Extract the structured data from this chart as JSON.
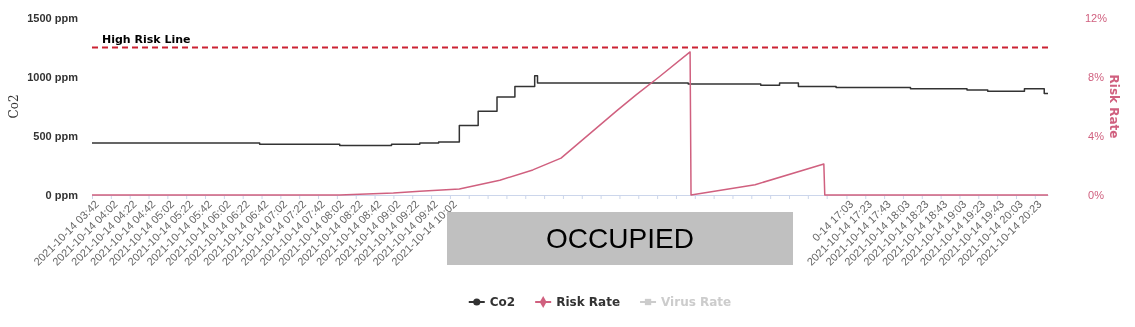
{
  "chart_data": {
    "type": "line",
    "ylabel": "Co2",
    "y2label": "Risk Rate",
    "xlim": [
      "2021-10-14T03:42",
      "2021-10-14T20:37"
    ],
    "xticks": [
      {
        "value": "2021-10-14T03:42",
        "label": "2021-10-14 03:42"
      },
      {
        "value": "2021-10-14T04:02",
        "label": "2021-10-14 04:02"
      },
      {
        "value": "2021-10-14T04:22",
        "label": "2021-10-14 04:22"
      },
      {
        "value": "2021-10-14T04:42",
        "label": "2021-10-14 04:42"
      },
      {
        "value": "2021-10-14T05:02",
        "label": "2021-10-14 05:02"
      },
      {
        "value": "2021-10-14T05:22",
        "label": "2021-10-14 05:22"
      },
      {
        "value": "2021-10-14T05:42",
        "label": "2021-10-14 05:42"
      },
      {
        "value": "2021-10-14T06:02",
        "label": "2021-10-14 06:02"
      },
      {
        "value": "2021-10-14T06:22",
        "label": "2021-10-14 06:22"
      },
      {
        "value": "2021-10-14T06:42",
        "label": "2021-10-14 06:42"
      },
      {
        "value": "2021-10-14T07:02",
        "label": "2021-10-14 07:02"
      },
      {
        "value": "2021-10-14T07:22",
        "label": "2021-10-14 07:22"
      },
      {
        "value": "2021-10-14T07:42",
        "label": "2021-10-14 07:42"
      },
      {
        "value": "2021-10-14T08:02",
        "label": "2021-10-14 08:02"
      },
      {
        "value": "2021-10-14T08:22",
        "label": "2021-10-14 08:22"
      },
      {
        "value": "2021-10-14T08:42",
        "label": "2021-10-14 08:42"
      },
      {
        "value": "2021-10-14T09:02",
        "label": "2021-10-14 09:02"
      },
      {
        "value": "2021-10-14T09:22",
        "label": "2021-10-14 09:22"
      },
      {
        "value": "2021-10-14T09:42",
        "label": "2021-10-14 09:42"
      },
      {
        "value": "2021-10-14T10:02",
        "label": "2021-10-14 10:02"
      },
      {
        "value": "2021-10-14T10:22",
        "label": null
      },
      {
        "value": "2021-10-14T10:42",
        "label": null
      },
      {
        "value": "2021-10-14T11:02",
        "label": null
      },
      {
        "value": "2021-10-14T11:22",
        "label": null
      },
      {
        "value": "2021-10-14T11:42",
        "label": null
      },
      {
        "value": "2021-10-14T12:02",
        "label": null
      },
      {
        "value": "2021-10-14T12:22",
        "label": null
      },
      {
        "value": "2021-10-14T12:42",
        "label": null
      },
      {
        "value": "2021-10-14T13:02",
        "label": null
      },
      {
        "value": "2021-10-14T13:22",
        "label": null
      },
      {
        "value": "2021-10-14T13:42",
        "label": null
      },
      {
        "value": "2021-10-14T14:02",
        "label": null
      },
      {
        "value": "2021-10-14T14:22",
        "label": null
      },
      {
        "value": "2021-10-14T14:42",
        "label": null
      },
      {
        "value": "2021-10-14T15:02",
        "label": null
      },
      {
        "value": "2021-10-14T15:22",
        "label": null
      },
      {
        "value": "2021-10-14T15:42",
        "label": null
      },
      {
        "value": "2021-10-14T16:02",
        "label": null
      },
      {
        "value": "2021-10-14T16:22",
        "label": null
      },
      {
        "value": "2021-10-14T16:42",
        "label": null
      },
      {
        "value": "2021-10-14T17:03",
        "label": "0-14 17:03"
      },
      {
        "value": "2021-10-14T17:23",
        "label": "2021-10-14 17:23"
      },
      {
        "value": "2021-10-14T17:43",
        "label": "2021-10-14 17:43"
      },
      {
        "value": "2021-10-14T18:03",
        "label": "2021-10-14 18:03"
      },
      {
        "value": "2021-10-14T18:23",
        "label": "2021-10-14 18:23"
      },
      {
        "value": "2021-10-14T18:43",
        "label": "2021-10-14 18:43"
      },
      {
        "value": "2021-10-14T19:03",
        "label": "2021-10-14 19:03"
      },
      {
        "value": "2021-10-14T19:23",
        "label": "2021-10-14 19:23"
      },
      {
        "value": "2021-10-14T19:43",
        "label": "2021-10-14 19:43"
      },
      {
        "value": "2021-10-14T20:03",
        "label": "2021-10-14 20:03"
      },
      {
        "value": "2021-10-14T20:23",
        "label": "2021-10-14 20:23"
      }
    ],
    "ylim": [
      0,
      1500
    ],
    "yticks": [
      {
        "value": 0,
        "label": "0 ppm"
      },
      {
        "value": 500,
        "label": "500 ppm"
      },
      {
        "value": 1000,
        "label": "1000 ppm"
      },
      {
        "value": 1500,
        "label": "1500 ppm"
      }
    ],
    "y2lim": [
      0,
      12
    ],
    "y2ticks": [
      {
        "value": 0,
        "label": "0%"
      },
      {
        "value": 4,
        "label": "4%"
      },
      {
        "value": 8,
        "label": "8%"
      },
      {
        "value": 12,
        "label": "12%"
      }
    ],
    "legend": "bottom",
    "grid": false,
    "ref_lines": [
      {
        "axis": "y2",
        "value": 10,
        "label": "High Risk Line",
        "color": "#cc2233",
        "line_style": "dashed"
      }
    ],
    "annotations": [
      "OCCUPIED"
    ],
    "series": [
      {
        "name": "Co2",
        "type": "step",
        "color": "#333333",
        "x": [
          "2021-10-14T03:42",
          "2021-10-14T04:40",
          "2021-10-14T05:37",
          "2021-10-14T06:40",
          "2021-10-14T08:05",
          "2021-10-14T09:00",
          "2021-10-14T09:30",
          "2021-10-14T09:50",
          "2021-10-14T10:12",
          "2021-10-14T10:32",
          "2021-10-14T10:52",
          "2021-10-14T11:11",
          "2021-10-14T11:32",
          "2021-10-14T11:35",
          "2021-10-14T14:15",
          "2021-10-14T15:32",
          "2021-10-14T15:52",
          "2021-10-14T16:12",
          "2021-10-14T16:52",
          "2021-10-14T18:11",
          "2021-10-14T19:11",
          "2021-10-14T19:33",
          "2021-10-14T19:53",
          "2021-10-14T20:12",
          "2021-10-14T20:33",
          "2021-10-14T20:37"
        ],
        "values": [
          440,
          440,
          440,
          430,
          420,
          430,
          440,
          450,
          590,
          710,
          830,
          920,
          1010,
          950,
          940,
          930,
          950,
          920,
          910,
          900,
          890,
          880,
          880,
          900,
          860,
          860
        ]
      },
      {
        "name": "Risk Rate",
        "axis": "y2",
        "color": "#d0607f",
        "x": [
          "2021-10-14T03:42",
          "2021-10-14T08:05",
          "2021-10-14T09:02",
          "2021-10-14T09:30",
          "2021-10-14T10:12",
          "2021-10-14T10:55",
          "2021-10-14T11:30",
          "2021-10-14T12:00",
          "2021-10-14T12:59",
          "2021-10-14T13:20",
          "2021-10-14T13:44",
          "2021-10-14T14:17",
          "2021-10-14T14:18",
          "2021-10-14T15:26",
          "2021-10-14T16:39",
          "2021-10-14T16:40",
          "2021-10-14T20:37"
        ],
        "values": [
          0,
          0,
          0.14,
          0.25,
          0.4,
          1.0,
          1.7,
          2.5,
          5.7,
          6.8,
          8.0,
          9.7,
          0,
          0.7,
          2.1,
          0,
          0
        ]
      },
      {
        "name": "Virus Rate",
        "type": "line",
        "axis": "y2",
        "color": "#cccccc"
      }
    ]
  }
}
